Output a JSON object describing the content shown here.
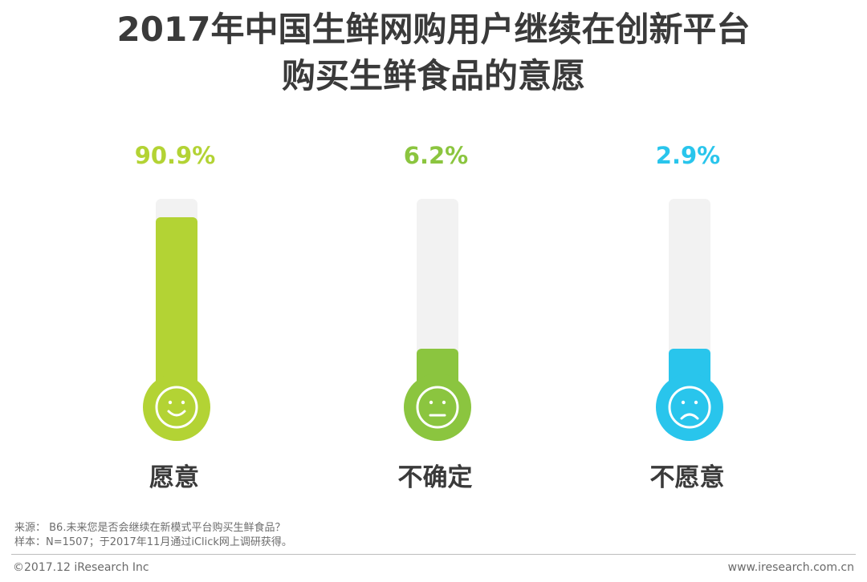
{
  "title": {
    "line1": "2017年中国生鲜网购用户继续在创新平台",
    "line2": "购买生鲜食品的意愿"
  },
  "chart_data": {
    "type": "bar",
    "categories": [
      "愿意",
      "不确定",
      "不愿意"
    ],
    "values": [
      90.9,
      6.2,
      2.9
    ],
    "value_labels": [
      "90.9%",
      "6.2%",
      "2.9%"
    ],
    "face_icons": [
      "smile-face-icon",
      "neutral-face-icon",
      "frown-face-icon"
    ],
    "colors": [
      "#b3d334",
      "#8bc53f",
      "#29c5ec"
    ],
    "track_color": "#f2f2f2",
    "ylim": [
      0,
      100
    ]
  },
  "footer": {
    "source": "来源：  B6.未来您是否会继续在新模式平台购买生鲜食品？",
    "sample": "样本：N=1507；于2017年11月通过iClick网上调研获得。",
    "copyright": "©2017.12 iResearch Inc",
    "website": "www.iresearch.com.cn"
  }
}
